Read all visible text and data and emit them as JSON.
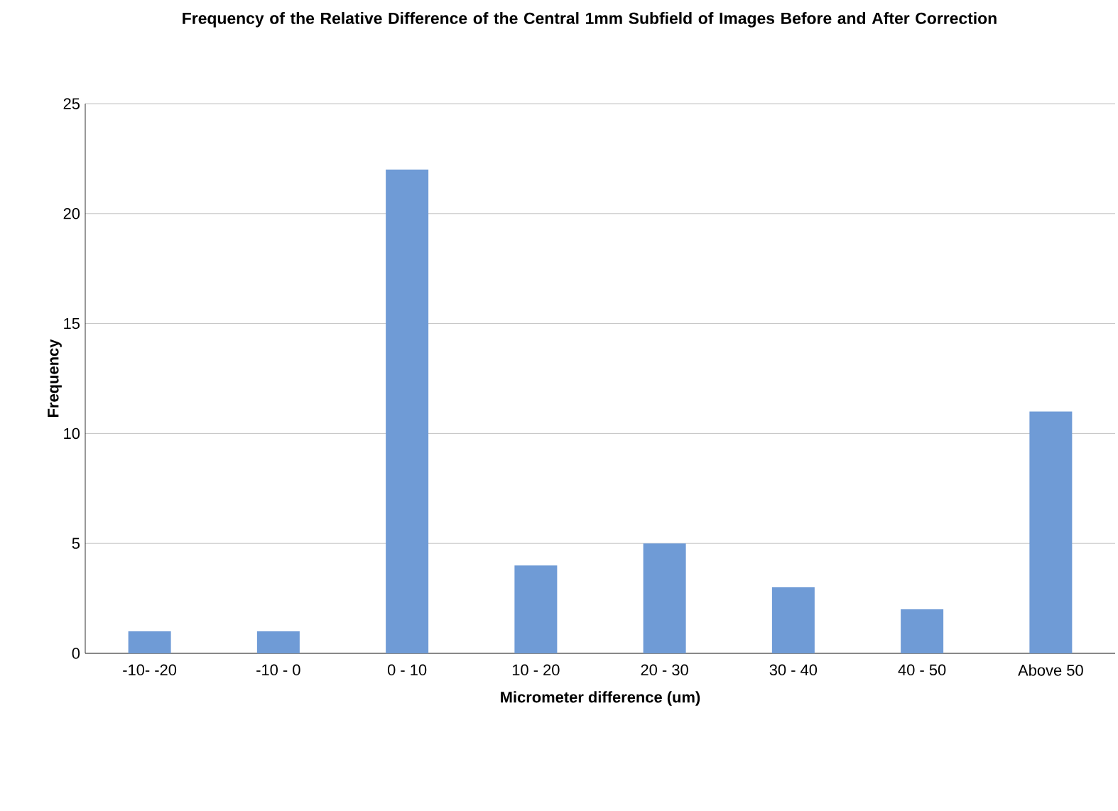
{
  "chart_data": {
    "type": "bar",
    "title": "Frequency of the Relative Difference of the Central 1mm Subfield of Images Before and After Correction",
    "xlabel": "Micrometer difference (um)",
    "ylabel": "Frequency",
    "categories": [
      "-10- -20",
      "-10 - 0",
      "0 - 10",
      "10 - 20",
      "20 - 30",
      "30 - 40",
      "40 - 50",
      "Above 50"
    ],
    "values": [
      1,
      1,
      22,
      4,
      5,
      3,
      2,
      11
    ],
    "color": "#6f9bd6",
    "ylim": [
      0,
      25
    ],
    "yticks": [
      0,
      5,
      10,
      15,
      20,
      25
    ],
    "grid": "y"
  }
}
